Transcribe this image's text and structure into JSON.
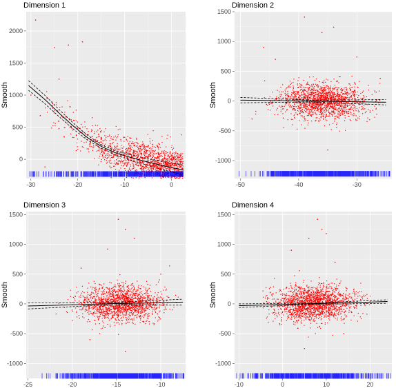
{
  "chart_data": [
    {
      "type": "scatter",
      "title": "Dimension 1",
      "ylabel": "Smooth",
      "xlim": [
        -31,
        3
      ],
      "ylim": [
        -300,
        2300
      ],
      "xticks": [
        -30,
        -20,
        -10,
        0
      ],
      "yticks": [
        0,
        500,
        1000,
        1500,
        2000
      ],
      "grid": true,
      "point_color": "#ff0000",
      "rug_color": "#0000ff",
      "smooth": {
        "x": [
          -30.5,
          -27,
          -24,
          -21,
          -18,
          -15,
          -12,
          -9,
          -6,
          -3,
          0,
          2.5
        ],
        "y": [
          1150,
          930,
          720,
          520,
          340,
          200,
          100,
          35,
          -25,
          -80,
          -130,
          -165
        ]
      },
      "band_width": 75,
      "scatter_model": {
        "n": 1600,
        "x_range": [
          -27,
          2.5
        ],
        "x_center": -8,
        "noise": 150,
        "rug_y": -230
      },
      "outliers": [
        {
          "x": -29,
          "y": 2170
        },
        {
          "x": -25,
          "y": 1740
        },
        {
          "x": -22,
          "y": 1780
        },
        {
          "x": -19,
          "y": 1830
        },
        {
          "x": -24,
          "y": 1250
        },
        {
          "x": -30,
          "y": 1000
        },
        {
          "x": -28,
          "y": 680
        },
        {
          "x": -27,
          "y": -120
        }
      ]
    },
    {
      "type": "scatter",
      "title": "Dimension 2",
      "ylabel": "Smooth",
      "xlim": [
        -51,
        -24
      ],
      "ylim": [
        -1300,
        1500
      ],
      "xticks": [
        -50,
        -40,
        -30
      ],
      "yticks": [
        -1000,
        -500,
        0,
        500,
        1000,
        1500
      ],
      "grid": true,
      "point_color": "#ff0000",
      "rug_color": "#0000ff",
      "smooth": {
        "x": [
          -50,
          -45,
          -40,
          -35,
          -30,
          -25
        ],
        "y": [
          15,
          10,
          3,
          -5,
          -12,
          -20
        ]
      },
      "band_width": 45,
      "scatter_model": {
        "n": 1700,
        "x_range": [
          -48,
          -26
        ],
        "x_center": -36,
        "noise": 150,
        "rug_y": -1220
      },
      "outliers": [
        {
          "x": -39,
          "y": 1410
        },
        {
          "x": -36,
          "y": 1150
        },
        {
          "x": -34,
          "y": 1240
        },
        {
          "x": -46,
          "y": 900
        },
        {
          "x": -44,
          "y": 700
        },
        {
          "x": -30,
          "y": 740
        },
        {
          "x": -26,
          "y": 380
        },
        {
          "x": -35,
          "y": -820
        },
        {
          "x": -48,
          "y": -300
        }
      ]
    },
    {
      "type": "scatter",
      "title": "Dimension 3",
      "ylabel": "Smooth",
      "xlim": [
        -25.2,
        -7.2
      ],
      "ylim": [
        -1250,
        1550
      ],
      "xticks": [
        -25,
        -20,
        -15,
        -10
      ],
      "yticks": [
        -1000,
        -500,
        0,
        500,
        1000,
        1500
      ],
      "grid": true,
      "point_color": "#ff0000",
      "rug_color": "#0000ff",
      "smooth": {
        "x": [
          -25,
          -20,
          -15,
          -10,
          -7.5
        ],
        "y": [
          -35,
          -15,
          5,
          20,
          30
        ]
      },
      "band_width": 50,
      "scatter_model": {
        "n": 1700,
        "x_range": [
          -22,
          -8
        ],
        "x_center": -14.5,
        "noise": 150,
        "rug_y": -1210
      },
      "outliers": [
        {
          "x": -14.8,
          "y": 1420
        },
        {
          "x": -14,
          "y": 1250
        },
        {
          "x": -13,
          "y": 1100
        },
        {
          "x": -16,
          "y": 920
        },
        {
          "x": -19,
          "y": 600
        },
        {
          "x": -10,
          "y": 500
        },
        {
          "x": -14,
          "y": -800
        },
        {
          "x": -18,
          "y": -600
        }
      ]
    },
    {
      "type": "scatter",
      "title": "Dimension 4",
      "ylabel": "Smooth",
      "xlim": [
        -11,
        25
      ],
      "ylim": [
        -1250,
        1550
      ],
      "xticks": [
        -10,
        0,
        10,
        20
      ],
      "yticks": [
        -1000,
        -500,
        0,
        500,
        1000,
        1500
      ],
      "grid": true,
      "point_color": "#ff0000",
      "rug_color": "#0000ff",
      "smooth": {
        "x": [
          -10,
          -5,
          0,
          5,
          10,
          15,
          20,
          24
        ],
        "y": [
          -30,
          -20,
          -10,
          0,
          10,
          20,
          30,
          40
        ]
      },
      "band_width": 30,
      "scatter_model": {
        "n": 1800,
        "x_range": [
          -5,
          23
        ],
        "x_center": 7,
        "noise": 150,
        "rug_y": -1210
      },
      "outliers": [
        {
          "x": 8,
          "y": 1420
        },
        {
          "x": 6,
          "y": 1100
        },
        {
          "x": 9,
          "y": 1250
        },
        {
          "x": 2,
          "y": 900
        },
        {
          "x": 10,
          "y": 1180
        },
        {
          "x": 12,
          "y": 700
        },
        {
          "x": 5,
          "y": -750
        },
        {
          "x": 14,
          "y": -500
        }
      ]
    }
  ]
}
